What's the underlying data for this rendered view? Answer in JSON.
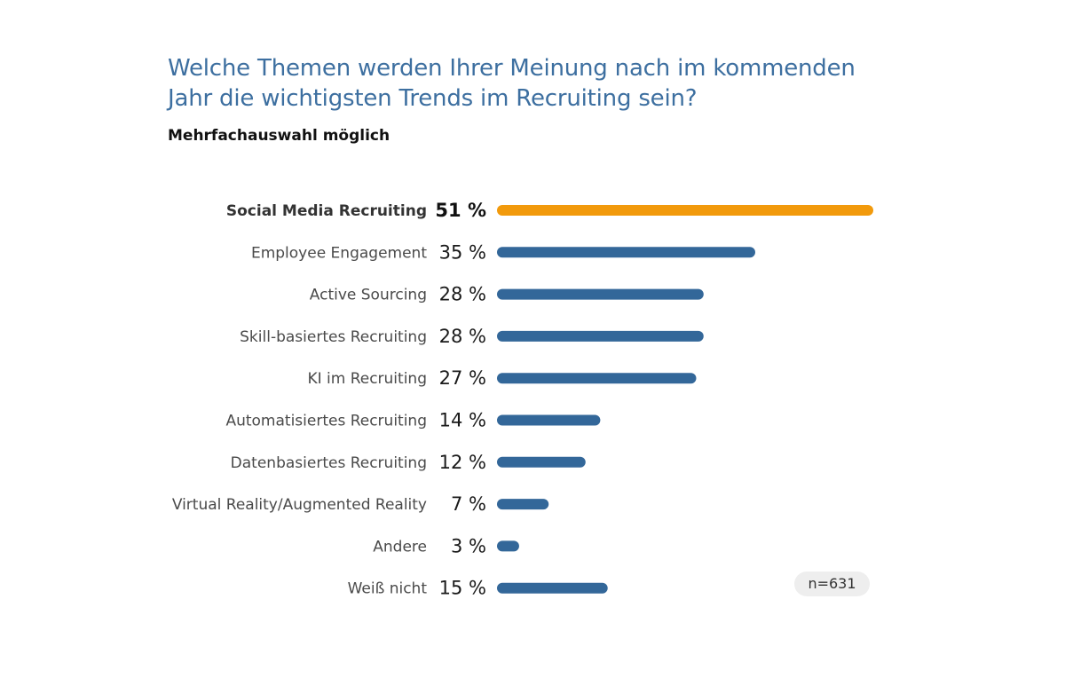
{
  "header": {
    "title_line1": "Welche Themen werden Ihrer Meinung nach im kommenden",
    "title_line2": "Jahr die wichtigsten Trends im Recruiting sein?",
    "subtitle": "Mehrfachauswahl möglich"
  },
  "sample_note": "n=631",
  "colors": {
    "highlight": "#f29a0c",
    "bar": "#336799",
    "title": "#3d6fa0"
  },
  "chart_data": {
    "type": "bar",
    "orientation": "horizontal",
    "unit": "%",
    "categories": [
      "Social Media Recruiting",
      "Employee Engagement",
      "Active Sourcing",
      "Skill-basiertes Recruiting",
      "KI im Recruiting",
      "Automatisiertes Recruiting",
      "Datenbasiertes Recruiting",
      "Virtual Reality/Augmented Reality",
      "Andere",
      "Weiß nicht"
    ],
    "values": [
      51,
      35,
      28,
      28,
      27,
      14,
      12,
      7,
      3,
      15
    ],
    "value_labels": [
      "51 %",
      "35 %",
      "28 %",
      "28 %",
      "27 %",
      "14 %",
      "12 %",
      "7 %",
      "3 %",
      "15 %"
    ],
    "highlighted_index": 0,
    "xlim": [
      0,
      51
    ],
    "grid": false,
    "title": "Welche Themen werden Ihrer Meinung nach im kommenden Jahr die wichtigsten Trends im Recruiting sein?",
    "subtitle": "Mehrfachauswahl möglich",
    "xlabel": "",
    "ylabel": ""
  }
}
